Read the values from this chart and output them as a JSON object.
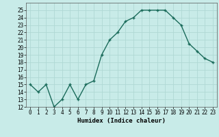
{
  "x": [
    0,
    1,
    2,
    3,
    4,
    5,
    6,
    7,
    8,
    9,
    10,
    11,
    12,
    13,
    14,
    15,
    16,
    17,
    18,
    19,
    20,
    21,
    22,
    23
  ],
  "y": [
    15,
    14,
    15,
    12,
    13,
    15,
    13,
    15,
    15.5,
    19,
    21,
    22,
    23.5,
    24,
    25,
    25,
    25,
    25,
    24,
    23,
    20.5,
    19.5,
    18.5,
    18
  ],
  "line_color": "#1a6b5a",
  "marker": "+",
  "marker_size": 3,
  "background_color": "#c8ebe8",
  "grid_color": "#b0d8d4",
  "xlabel": "Humidex (Indice chaleur)",
  "ylabel": "",
  "xlim": [
    -0.5,
    23.5
  ],
  "ylim": [
    12,
    26
  ],
  "yticks": [
    12,
    13,
    14,
    15,
    16,
    17,
    18,
    19,
    20,
    21,
    22,
    23,
    24,
    25
  ],
  "xticks": [
    0,
    1,
    2,
    3,
    4,
    5,
    6,
    7,
    8,
    9,
    10,
    11,
    12,
    13,
    14,
    15,
    16,
    17,
    18,
    19,
    20,
    21,
    22,
    23
  ],
  "xlabel_fontsize": 6.5,
  "tick_fontsize": 5.5,
  "linewidth": 1.0,
  "marker_edge_width": 1.0
}
